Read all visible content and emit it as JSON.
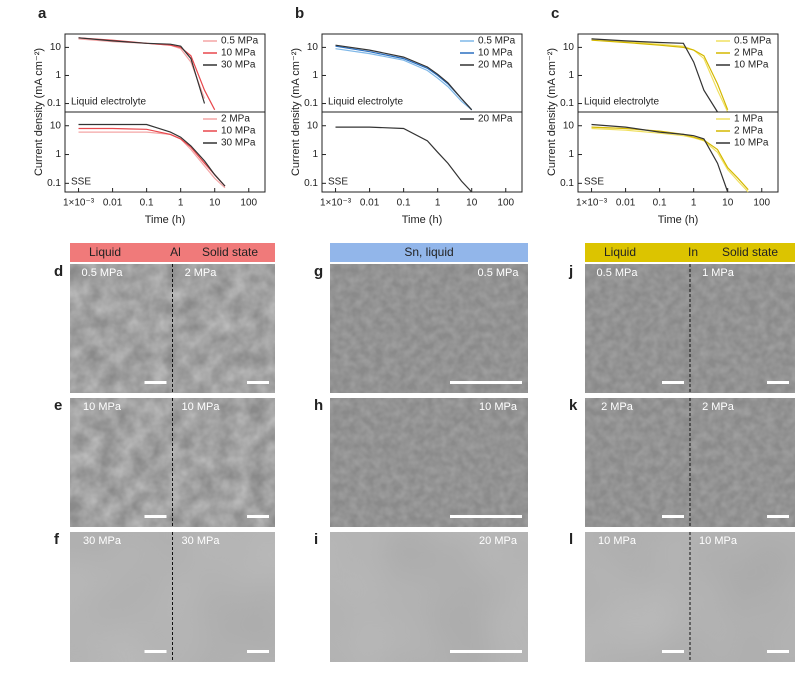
{
  "chart_data": [
    {
      "type": "line",
      "panel": "a",
      "annotation": "Liquid electrolyte",
      "y_label": "Current density (mA cm⁻²)",
      "log_x": true,
      "log_y": true,
      "legend": "upper right",
      "xlim": [
        0.0004,
        300
      ],
      "ylim": [
        0.05,
        30
      ],
      "yticks": [
        0.1,
        1,
        10
      ],
      "x": [
        0.001,
        0.01,
        0.1,
        0.5,
        1,
        2,
        5,
        10,
        20
      ],
      "series": [
        {
          "name": "0.5 MPa",
          "color": "#f4a6a6",
          "values": [
            20,
            16,
            14,
            12,
            9,
            3,
            0.15,
            null,
            null
          ]
        },
        {
          "name": "10 MPa",
          "color": "#e8474c",
          "values": [
            22,
            18,
            14,
            12,
            10,
            5,
            0.3,
            0.06,
            null
          ]
        },
        {
          "name": "30 MPa",
          "color": "#333333",
          "values": [
            22,
            17,
            14,
            13,
            11,
            4,
            0.1,
            null,
            null
          ]
        }
      ]
    },
    {
      "type": "line",
      "annotation": "SSE",
      "x_label": "Time (h)",
      "log_x": true,
      "log_y": true,
      "legend": "upper right",
      "xlim": [
        0.0004,
        300
      ],
      "ylim": [
        0.05,
        30
      ],
      "yticks": [
        0.1,
        1,
        10
      ],
      "xticks": [
        {
          "value": 0.001,
          "label": "1×10⁻³"
        },
        0.01,
        0.1,
        1,
        10,
        100
      ],
      "x": [
        0.001,
        0.01,
        0.1,
        0.5,
        1,
        2,
        5,
        10,
        20
      ],
      "series": [
        {
          "name": "2 MPa",
          "color": "#f4a6a6",
          "values": [
            6,
            6,
            6,
            5,
            3.5,
            1.5,
            0.4,
            0.15,
            0.07
          ]
        },
        {
          "name": "10 MPa",
          "color": "#e8474c",
          "values": [
            8,
            8,
            7.5,
            5,
            3.5,
            1.8,
            0.5,
            0.2,
            0.08
          ]
        },
        {
          "name": "30 MPa",
          "color": "#333333",
          "values": [
            11,
            11,
            11,
            6,
            4,
            2,
            0.6,
            0.2,
            0.08
          ]
        }
      ]
    },
    {
      "type": "line",
      "panel": "b",
      "annotation": "Liquid electrolyte",
      "y_label": "Current density (mA cm⁻²)",
      "log_x": true,
      "log_y": true,
      "legend": "upper right",
      "xlim": [
        0.0004,
        300
      ],
      "ylim": [
        0.05,
        30
      ],
      "yticks": [
        0.1,
        1,
        10
      ],
      "x": [
        0.001,
        0.01,
        0.1,
        0.5,
        1,
        2,
        5,
        10,
        20
      ],
      "series": [
        {
          "name": "0.5 MPa",
          "color": "#7fb8e8",
          "values": [
            9,
            6,
            3.5,
            1.5,
            0.8,
            0.4,
            0.12,
            0.06,
            null
          ]
        },
        {
          "name": "10 MPa",
          "color": "#2a6fc0",
          "values": [
            11,
            7,
            4,
            1.8,
            1,
            0.5,
            0.15,
            0.06,
            null
          ]
        },
        {
          "name": "20 MPa",
          "color": "#333333",
          "values": [
            12,
            8,
            4.5,
            2,
            1.1,
            0.55,
            0.15,
            0.06,
            null
          ]
        }
      ]
    },
    {
      "type": "line",
      "annotation": "SSE",
      "x_label": "Time (h)",
      "log_x": true,
      "log_y": true,
      "legend": "upper right",
      "xlim": [
        0.0004,
        300
      ],
      "ylim": [
        0.05,
        30
      ],
      "yticks": [
        0.1,
        1,
        10
      ],
      "xticks": [
        {
          "value": 0.001,
          "label": "1×10⁻³"
        },
        0.01,
        0.1,
        1,
        10,
        100
      ],
      "x": [
        0.001,
        0.01,
        0.1,
        0.5,
        1,
        2,
        5,
        10,
        20
      ],
      "series": [
        {
          "name": "20 MPa",
          "color": "#333333",
          "values": [
            9,
            9,
            8,
            3,
            1.2,
            0.5,
            0.12,
            0.05,
            null
          ]
        }
      ]
    },
    {
      "type": "line",
      "panel": "c",
      "annotation": "Liquid electrolyte",
      "y_label": "Current density (mA cm⁻²)",
      "log_x": true,
      "log_y": true,
      "legend": "upper right",
      "xlim": [
        0.0004,
        300
      ],
      "ylim": [
        0.05,
        30
      ],
      "yticks": [
        0.1,
        1,
        10
      ],
      "x": [
        0.001,
        0.01,
        0.1,
        0.5,
        1,
        2,
        5,
        10,
        20
      ],
      "series": [
        {
          "name": "0.5 MPa",
          "color": "#f0e060",
          "values": [
            20,
            16,
            13,
            11,
            8,
            4,
            0.3,
            0.05,
            null
          ]
        },
        {
          "name": "2 MPa",
          "color": "#d4b800",
          "values": [
            18,
            15,
            12,
            10,
            8,
            5,
            0.5,
            0.06,
            null
          ]
        },
        {
          "name": "10 MPa",
          "color": "#333333",
          "values": [
            20,
            17,
            15,
            14,
            3,
            0.3,
            0.05,
            null,
            null
          ]
        }
      ]
    },
    {
      "type": "line",
      "annotation": "SSE",
      "x_label": "Time (h)",
      "log_x": true,
      "log_y": true,
      "legend": "upper right",
      "xlim": [
        0.0004,
        300
      ],
      "ylim": [
        0.05,
        30
      ],
      "yticks": [
        0.1,
        1,
        10
      ],
      "xticks": [
        {
          "value": 0.001,
          "label": "1×10⁻³"
        },
        0.01,
        0.1,
        1,
        10,
        100
      ],
      "x": [
        0.001,
        0.01,
        0.1,
        0.5,
        1,
        2,
        5,
        10,
        20,
        40
      ],
      "series": [
        {
          "name": "1 MPa",
          "color": "#f0e060",
          "values": [
            8,
            7,
            5.5,
            4.5,
            3.8,
            3,
            1.2,
            0.3,
            0.12,
            0.05
          ]
        },
        {
          "name": "2 MPa",
          "color": "#d4b800",
          "values": [
            9,
            8,
            6.5,
            5,
            4,
            3.2,
            1.5,
            0.35,
            0.15,
            0.06
          ]
        },
        {
          "name": "10 MPa",
          "color": "#333333",
          "values": [
            11,
            9,
            6,
            5,
            4.5,
            3.5,
            0.5,
            0.05,
            null,
            null
          ]
        }
      ]
    }
  ],
  "sem": {
    "columns": [
      {
        "header": [
          "Liquid",
          "Al",
          "Solid state"
        ],
        "color": "#f07a7a",
        "rows": [
          {
            "letter": "d",
            "labels": [
              "0.5 MPa",
              "2 MPa"
            ]
          },
          {
            "letter": "e",
            "labels": [
              "10 MPa",
              "10 MPa"
            ]
          },
          {
            "letter": "f",
            "labels": [
              "30 MPa",
              "30 MPa"
            ]
          }
        ]
      },
      {
        "header": [
          "Sn, liquid"
        ],
        "color": "#92b6ea",
        "rows": [
          {
            "letter": "g",
            "labels": [
              "0.5 MPa"
            ]
          },
          {
            "letter": "h",
            "labels": [
              "10 MPa"
            ]
          },
          {
            "letter": "i",
            "labels": [
              "20 MPa"
            ]
          }
        ]
      },
      {
        "header": [
          "Liquid",
          "In",
          "Solid state"
        ],
        "color": "#dcc400",
        "rows": [
          {
            "letter": "j",
            "labels": [
              "0.5 MPa",
              "1 MPa"
            ]
          },
          {
            "letter": "k",
            "labels": [
              "2 MPa",
              "2 MPa"
            ]
          },
          {
            "letter": "l",
            "labels": [
              "10 MPa",
              "10 MPa"
            ]
          }
        ]
      }
    ]
  }
}
